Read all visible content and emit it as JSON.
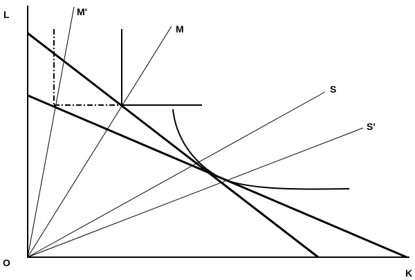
{
  "axes": {
    "y_label": "L",
    "x_label": "K",
    "origin": "O"
  },
  "rays": [
    {
      "label": "M'"
    },
    {
      "label": "M"
    },
    {
      "label": "S"
    },
    {
      "label": "S'"
    }
  ]
}
